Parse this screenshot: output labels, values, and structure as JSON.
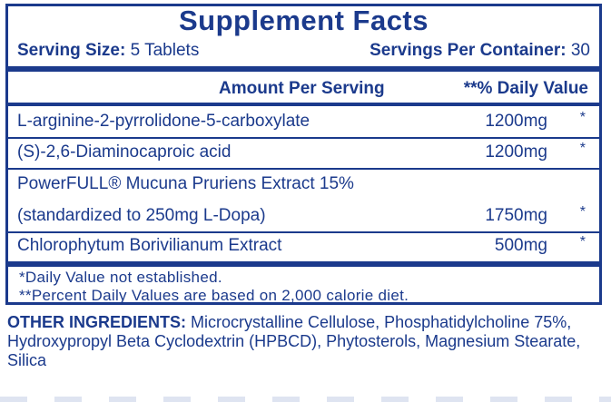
{
  "title": "Supplement Facts",
  "serving": {
    "size_label": "Serving Size:",
    "size_value": "5 Tablets",
    "per_container_label": "Servings Per Container:",
    "per_container_value": "30"
  },
  "header": {
    "amount": "Amount Per Serving",
    "daily_value": "**% Daily Value"
  },
  "ingredients": [
    {
      "name": "L-arginine-2-pyrrolidone-5-carboxylate",
      "amount": "1200mg",
      "dv": "*"
    },
    {
      "name": "(S)-2,6-Diaminocaproic acid",
      "amount": "1200mg",
      "dv": "*"
    },
    {
      "name": "PowerFULL® Mucuna Pruriens Extract 15%",
      "name_line2": "(standardized to 250mg L-Dopa)",
      "amount": "1750mg",
      "dv": "*"
    },
    {
      "name": "Chlorophytum Borivilianum Extract",
      "amount": "500mg",
      "dv": "*"
    }
  ],
  "footnotes": [
    "*Daily Value not established.",
    "**Percent Daily Values are based on 2,000 calorie diet."
  ],
  "other_ingredients": {
    "label": "OTHER INGREDIENTS:",
    "text": "Microcrystalline Cellulose, Phosphatidylcholine 75%, Hydroxypropyl Beta Cyclodextrin (HPBCD), Phytosterols, Magnesium Stearate, Silica"
  },
  "colors": {
    "ink": "#1b3a8c",
    "background": "#ffffff"
  }
}
